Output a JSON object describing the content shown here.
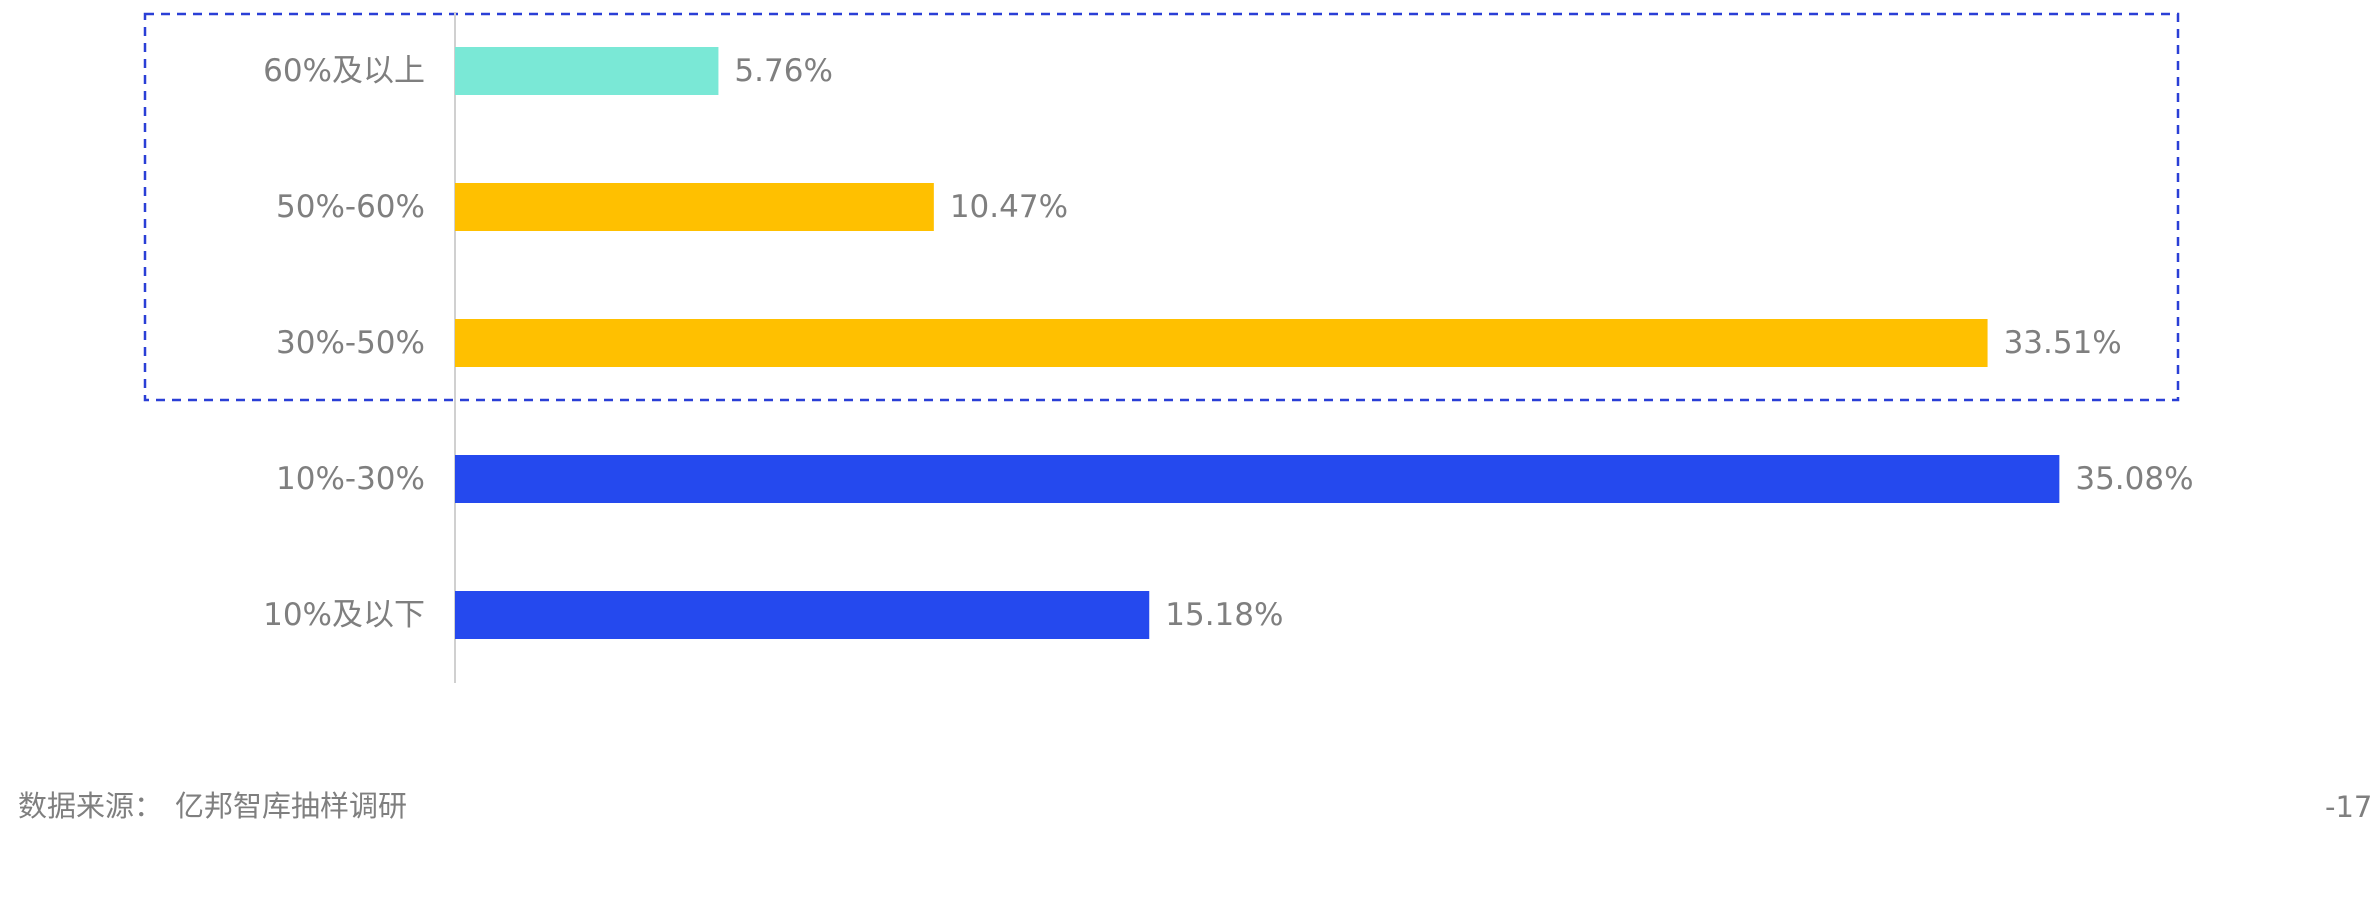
{
  "chart_data": {
    "type": "bar",
    "orientation": "horizontal",
    "categories": [
      "60%及以上",
      "50%-60%",
      "30%-50%",
      "10%-30%",
      "10%及以下"
    ],
    "values": [
      5.76,
      10.47,
      33.51,
      35.08,
      15.18
    ],
    "value_labels": [
      "5.76%",
      "10.47%",
      "33.51%",
      "35.08%",
      "15.18%"
    ],
    "colors": [
      "#7ae8d6",
      "#ffc000",
      "#ffc000",
      "#2549ee",
      "#2549ee"
    ],
    "xlim": [
      0,
      42.2
    ],
    "title": "",
    "xlabel": "",
    "ylabel": "",
    "grid": false,
    "highlight_box": {
      "categories": [
        "60%及以上",
        "50%-60%",
        "30%-50%"
      ],
      "style": "dashed",
      "color": "#2a3fd6"
    }
  },
  "footer": {
    "source_label": "数据来源：",
    "source_text": "亿邦智库抽样调研",
    "page_number": "-17"
  }
}
